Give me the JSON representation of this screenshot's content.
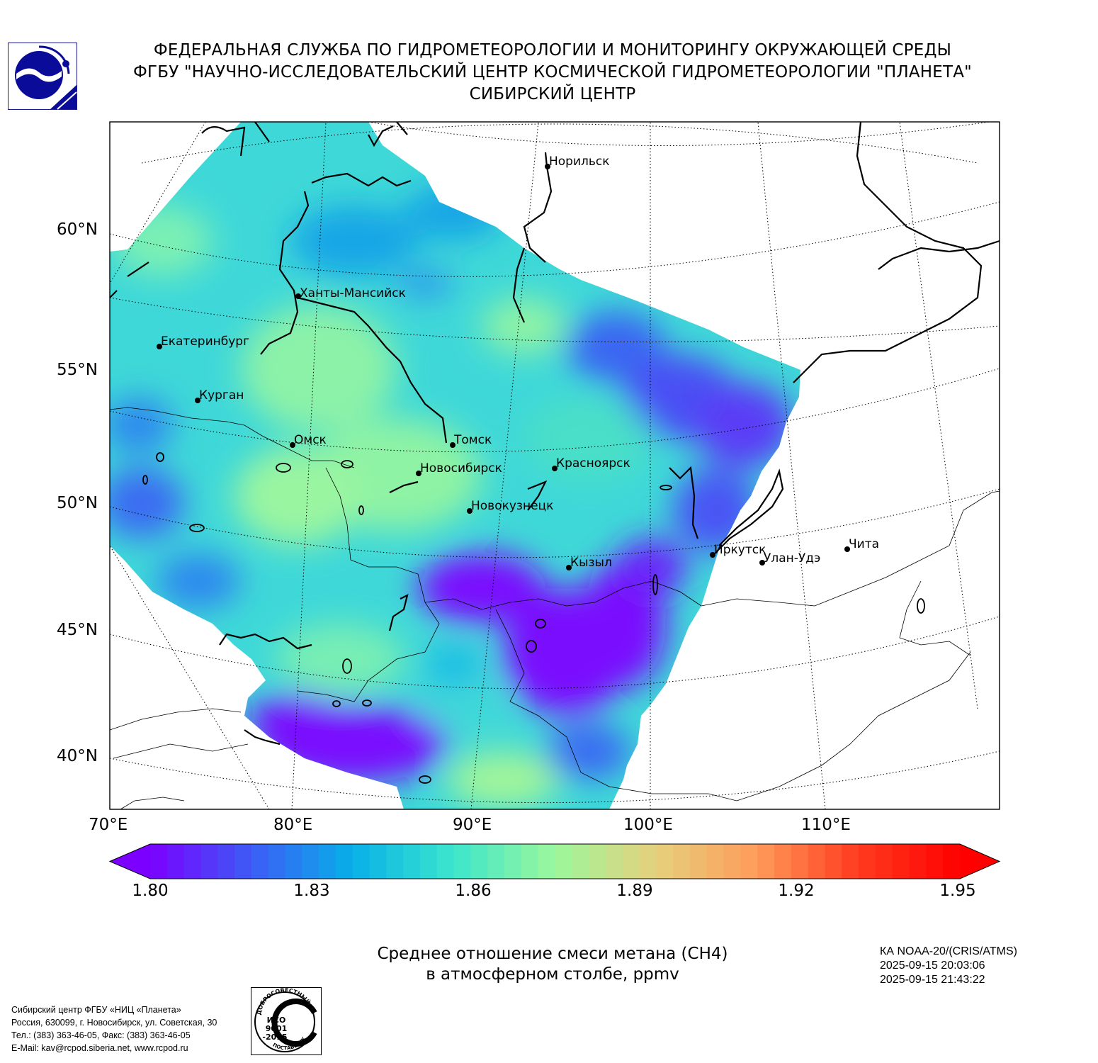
{
  "header": {
    "line1": "ФЕДЕРАЛЬНАЯ СЛУЖБА ПО ГИДРОМЕТЕОРОЛОГИИ И МОНИТОРИНГУ ОКРУЖАЮЩЕЙ СРЕДЫ",
    "line2": "ФГБУ \"НАУЧНО-ИССЛЕДОВАТЕЛЬСКИЙ ЦЕНТР КОСМИЧЕСКОЙ ГИДРОМЕТЕОРОЛОГИИ \"ПЛАНЕТА\"",
    "line3": "СИБИРСКИЙ ЦЕНТР"
  },
  "map": {
    "latitude_labels": [
      "60°N",
      "55°N",
      "50°N",
      "45°N",
      "40°N"
    ],
    "longitude_labels": [
      "70°E",
      "80°E",
      "90°E",
      "100°E",
      "110°E"
    ],
    "cities": [
      {
        "name": "Норильск"
      },
      {
        "name": "Ханты-Мансийск"
      },
      {
        "name": "Екатеринбург"
      },
      {
        "name": "Курган"
      },
      {
        "name": "Омск"
      },
      {
        "name": "Томск"
      },
      {
        "name": "Новосибирск"
      },
      {
        "name": "Красноярск"
      },
      {
        "name": "Новокузнецк"
      },
      {
        "name": "Иркутск"
      },
      {
        "name": "Улан-Удэ"
      },
      {
        "name": "Чита"
      },
      {
        "name": "Кызыл"
      }
    ]
  },
  "colorbar": {
    "min": 1.8,
    "max": 1.95,
    "ticks": [
      "1.80",
      "1.83",
      "1.86",
      "1.89",
      "1.92",
      "1.95"
    ],
    "colors": [
      "#7b00ff",
      "#3c5cf5",
      "#08b0e8",
      "#3ce6cc",
      "#9cf79c",
      "#e6d07c",
      "#ff9a5a",
      "#ff3a1e",
      "#ff0000"
    ]
  },
  "caption": {
    "line1": "Среднее отношение смеси метана (CH4)",
    "line2": "в атмосферном столбе, ppmv"
  },
  "satellite": {
    "name": "КА NOAA-20/(CRIS/ATMS)",
    "start": "2025-09-15 20:03:06",
    "end": "2025-09-15 21:43:22"
  },
  "footer": {
    "line1": "Сибирский центр ФГБУ «НИЦ «Планета»",
    "line2": "Россия, 630099, г. Новосибирск, ул. Советская, 30",
    "line3": "Тел.: (383) 363-46-05, Факс: (383) 363-46-05",
    "line4": "E-Mail: kav@rcpod.siberia.net, www.rcpod.ru"
  },
  "iso_stamp": {
    "top_text": "ДОБРОСОВЕСТНЫЙ",
    "line1": "ИСО",
    "line2": "9001",
    "line3": "-2015",
    "bottom_text": "ПОСТАВЩИК"
  }
}
